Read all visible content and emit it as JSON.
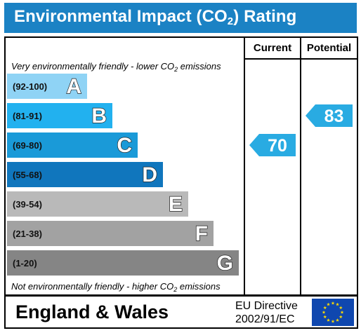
{
  "title": {
    "prefix": "Environmental Impact (CO",
    "sub": "2",
    "suffix": ") Rating"
  },
  "columns": {
    "current": "Current",
    "potential": "Potential"
  },
  "notes": {
    "top_prefix": "Very environmentally friendly - lower CO",
    "top_sub": "2",
    "top_suffix": " emissions",
    "bottom_prefix": "Not environmentally friendly - higher CO",
    "bottom_sub": "2",
    "bottom_suffix": " emissions"
  },
  "footer": {
    "region": "England & Wales",
    "directive_line1": "EU Directive",
    "directive_line2": "2002/91/EC"
  },
  "chart_data": {
    "type": "bar",
    "title": "Environmental Impact (CO2) Rating",
    "categories": [
      "A",
      "B",
      "C",
      "D",
      "E",
      "F",
      "G"
    ],
    "ranges": [
      "(92-100)",
      "(81-91)",
      "(69-80)",
      "(55-68)",
      "(39-54)",
      "(21-38)",
      "(1-20)"
    ],
    "colors": [
      "#8fd3f5",
      "#22b1ef",
      "#1a9ad8",
      "#1076bd",
      "#b9b9b9",
      "#a2a2a2",
      "#858585"
    ],
    "current": {
      "label": "Current",
      "value": 70,
      "band": "C"
    },
    "potential": {
      "label": "Potential",
      "value": 83,
      "band": "B"
    },
    "arrow_color": "#29abe2"
  }
}
